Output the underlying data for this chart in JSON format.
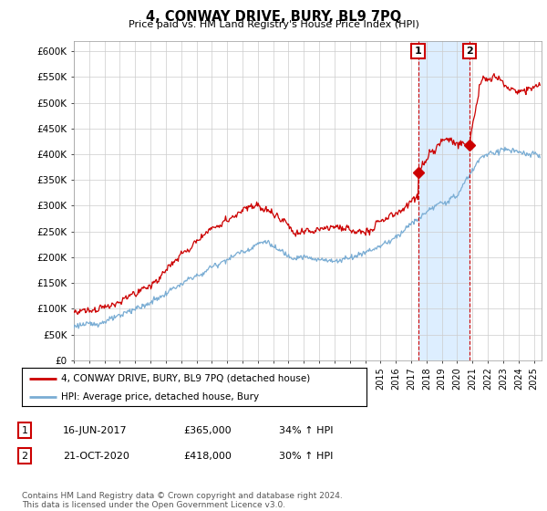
{
  "title": "4, CONWAY DRIVE, BURY, BL9 7PQ",
  "subtitle": "Price paid vs. HM Land Registry's House Price Index (HPI)",
  "ylabel_ticks": [
    "£0",
    "£50K",
    "£100K",
    "£150K",
    "£200K",
    "£250K",
    "£300K",
    "£350K",
    "£400K",
    "£450K",
    "£500K",
    "£550K",
    "£600K"
  ],
  "ylim": [
    0,
    620000
  ],
  "xlim_start": 1995.0,
  "xlim_end": 2025.5,
  "hpi_color": "#7aadd4",
  "price_color": "#CC0000",
  "marker1_date": 2017.45,
  "marker1_price": 365000,
  "marker2_date": 2020.8,
  "marker2_price": 418000,
  "legend_price_label": "4, CONWAY DRIVE, BURY, BL9 7PQ (detached house)",
  "legend_hpi_label": "HPI: Average price, detached house, Bury",
  "table_row1": [
    "1",
    "16-JUN-2017",
    "£365,000",
    "34% ↑ HPI"
  ],
  "table_row2": [
    "2",
    "21-OCT-2020",
    "£418,000",
    "30% ↑ HPI"
  ],
  "footnote": "Contains HM Land Registry data © Crown copyright and database right 2024.\nThis data is licensed under the Open Government Licence v3.0.",
  "background_color": "#ffffff",
  "grid_color": "#cccccc",
  "shade_color": "#ddeeff"
}
